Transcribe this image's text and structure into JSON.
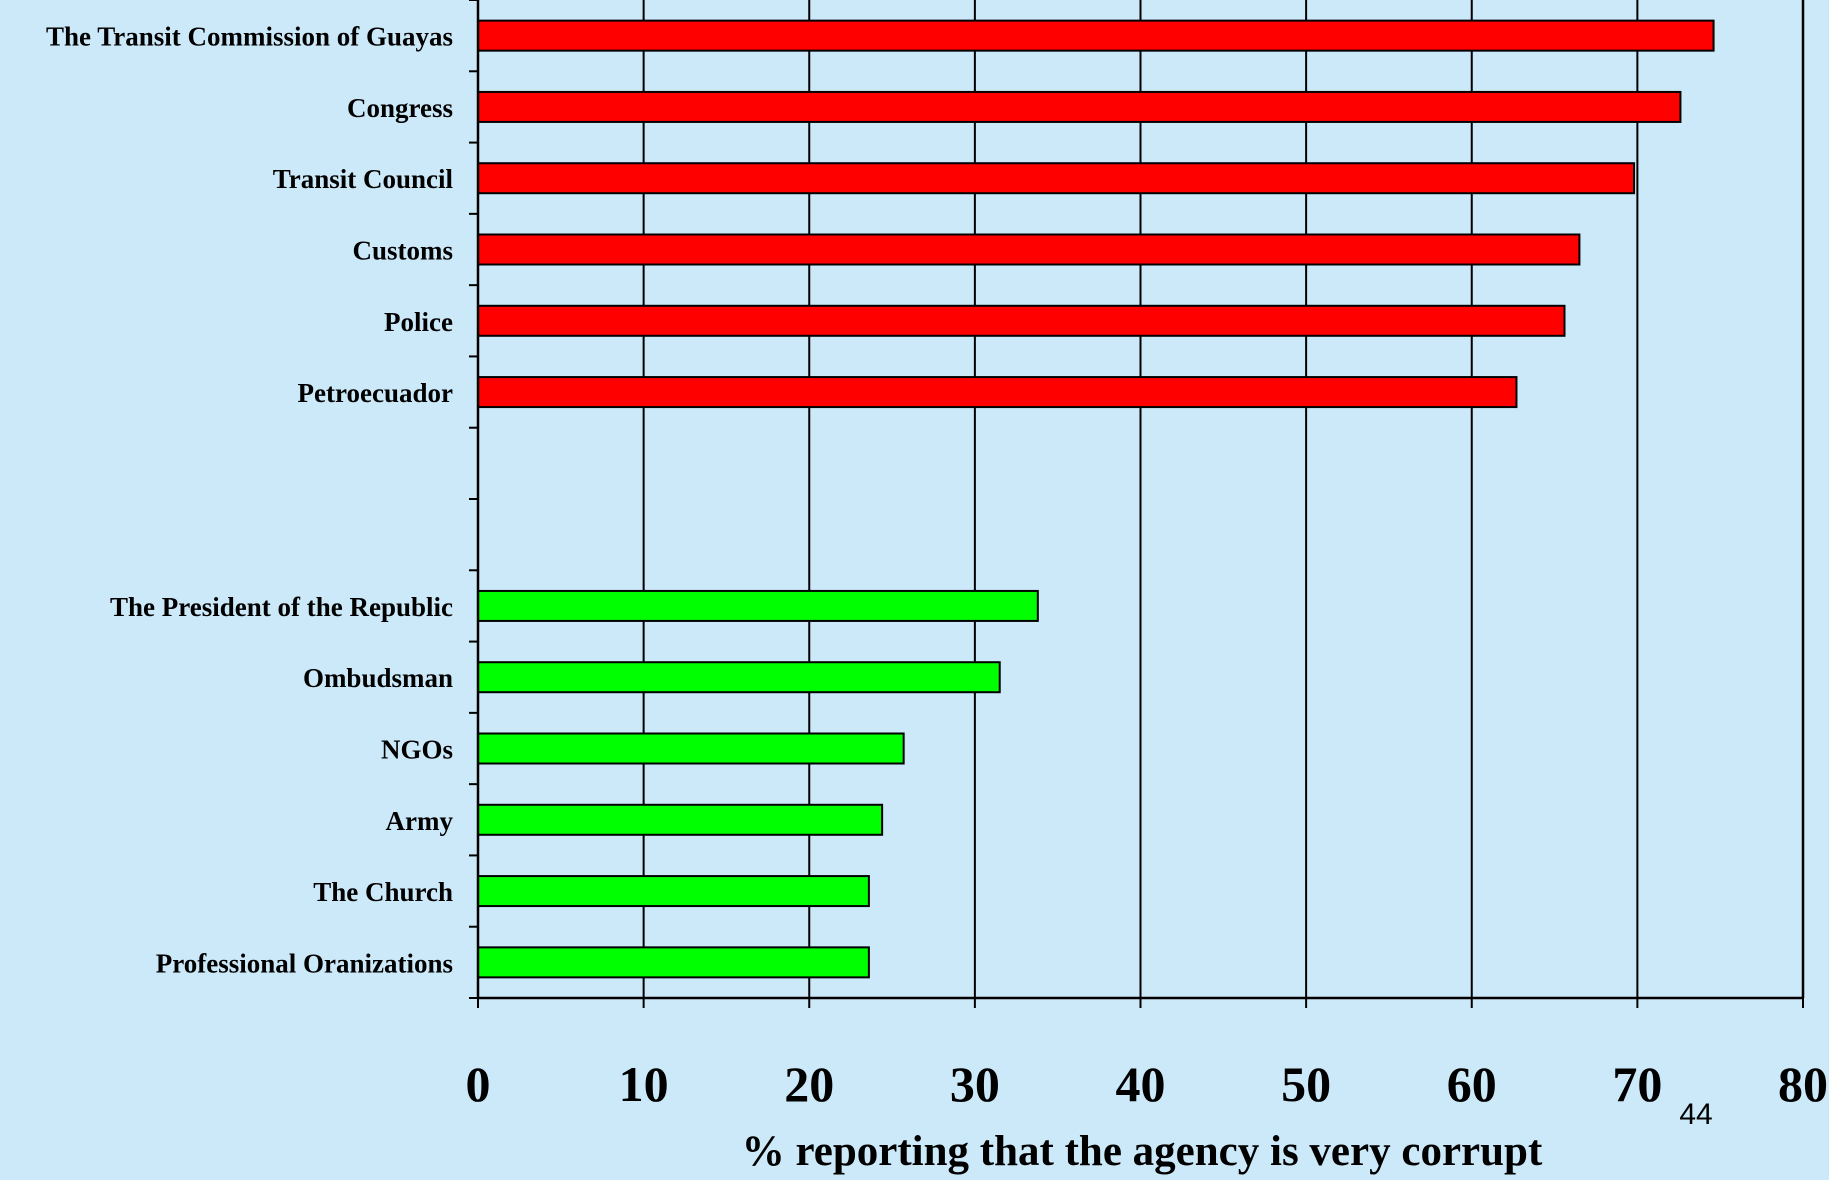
{
  "chart_data": {
    "type": "bar",
    "orientation": "horizontal",
    "title": "",
    "xlabel": "% reporting that the agency is very corrupt",
    "ylabel": "",
    "xlim": [
      0,
      80
    ],
    "xticks": [
      0,
      10,
      20,
      30,
      40,
      50,
      60,
      70,
      80
    ],
    "grid": "vertical",
    "legend": "none",
    "series": [
      {
        "color": "#ff0000",
        "categories": [
          "The Transit Commission of Guayas",
          "Congress",
          "Transit Council",
          "Customs",
          "Police",
          "Petroecuador"
        ],
        "values": [
          74.6,
          72.6,
          69.8,
          66.5,
          65.6,
          62.7
        ]
      },
      {
        "color": "#00ff00",
        "categories": [
          "The President of the Republic",
          "Ombudsman",
          "NGOs",
          "Army",
          "The Church",
          "Professional Oranizations"
        ],
        "values": [
          33.8,
          31.5,
          25.7,
          24.4,
          23.6,
          23.6
        ]
      }
    ]
  },
  "slide_number": "44"
}
